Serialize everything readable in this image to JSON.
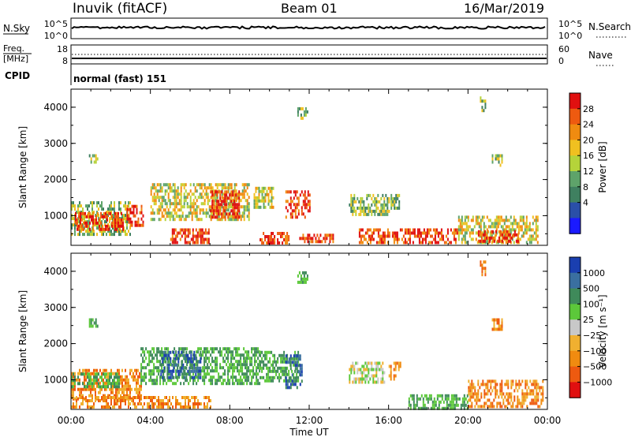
{
  "header": {
    "station": "Inuvik (fitACF)",
    "beam": "Beam 01",
    "date": "16/Mar/2019"
  },
  "top_panels": {
    "nsky": {
      "label": "N.Sky",
      "ticks_left": [
        "10^5",
        "10^0"
      ],
      "ticks_right": [
        "10^5",
        "10^0"
      ],
      "legend_label": "N.Search"
    },
    "freq": {
      "label_line1": "Freq.",
      "label_line2": "[MHz]",
      "ticks_left": [
        "18",
        "8"
      ],
      "ticks_right": [
        "60",
        "0"
      ],
      "legend_label": "Nave"
    },
    "cpid": {
      "label": "CPID",
      "value": "normal (fast) 151"
    }
  },
  "colors": {
    "power": [
      "#1a1aff",
      "#2a4fa8",
      "#3f8060",
      "#5ea36a",
      "#b5d33a",
      "#f0c020",
      "#f08b10",
      "#ee5a10",
      "#e01010"
    ],
    "velocity": [
      "#e01010",
      "#ee5a10",
      "#f08b10",
      "#f0b030",
      "#c8c8c8",
      "#5cc83a",
      "#3f8a5a",
      "#3a6fa0",
      "#1a3fb0"
    ]
  },
  "chart_data": [
    {
      "type": "heatmap",
      "title": "",
      "xlabel": "Time UT",
      "ylabel": "Slant Range [km]",
      "x_ticks": [
        "00:00",
        "04:00",
        "08:00",
        "12:00",
        "16:00",
        "20:00",
        "00:00"
      ],
      "y_ticks": [
        "1000",
        "2000",
        "3000",
        "4000"
      ],
      "xlim": [
        0,
        24
      ],
      "ylim": [
        180,
        4500
      ],
      "colorbar": {
        "label": "Power [dB]",
        "tick_labels": [
          "28",
          "24",
          "20",
          "16",
          "12",
          "8",
          "4"
        ]
      },
      "echo_regions": [
        {
          "t0": 0.0,
          "t1": 3.0,
          "r0": 480,
          "r1": 1400,
          "level": "low"
        },
        {
          "t0": 0.2,
          "t1": 2.6,
          "r0": 600,
          "r1": 1100,
          "level": "high"
        },
        {
          "t0": 2.8,
          "t1": 3.6,
          "r0": 700,
          "r1": 1300,
          "level": "high"
        },
        {
          "t0": 4.0,
          "t1": 9.0,
          "r0": 900,
          "r1": 1900,
          "level": "mid"
        },
        {
          "t0": 5.0,
          "t1": 7.0,
          "r0": 250,
          "r1": 650,
          "level": "high"
        },
        {
          "t0": 7.0,
          "t1": 8.5,
          "r0": 1000,
          "r1": 1700,
          "level": "high"
        },
        {
          "t0": 9.2,
          "t1": 10.2,
          "r0": 1200,
          "r1": 1800,
          "level": "mid"
        },
        {
          "t0": 9.5,
          "t1": 11.0,
          "r0": 250,
          "r1": 550,
          "level": "high"
        },
        {
          "t0": 10.8,
          "t1": 12.0,
          "r0": 1000,
          "r1": 1700,
          "level": "high"
        },
        {
          "t0": 11.5,
          "t1": 13.2,
          "r0": 250,
          "r1": 500,
          "level": "high"
        },
        {
          "t0": 14.0,
          "t1": 16.0,
          "r0": 1000,
          "r1": 1600,
          "level": "low"
        },
        {
          "t0": 14.5,
          "t1": 19.5,
          "r0": 250,
          "r1": 650,
          "level": "high"
        },
        {
          "t0": 19.5,
          "t1": 23.5,
          "r0": 300,
          "r1": 1000,
          "level": "mid"
        },
        {
          "t0": 20.5,
          "t1": 22.5,
          "r0": 300,
          "r1": 600,
          "level": "high"
        },
        {
          "t0": 11.4,
          "t1": 11.9,
          "r0": 3700,
          "r1": 4000,
          "level": "low"
        },
        {
          "t0": 0.9,
          "t1": 1.3,
          "r0": 2500,
          "r1": 2700,
          "level": "low"
        },
        {
          "t0": 21.2,
          "t1": 21.7,
          "r0": 2400,
          "r1": 2700,
          "level": "low"
        },
        {
          "t0": 20.6,
          "t1": 20.9,
          "r0": 3900,
          "r1": 4300,
          "level": "low"
        },
        {
          "t0": 16.1,
          "t1": 16.5,
          "r0": 1200,
          "r1": 1600,
          "level": "low"
        }
      ]
    },
    {
      "type": "heatmap",
      "title": "",
      "xlabel": "Time UT",
      "ylabel": "Slant Range [km]",
      "x_ticks": [
        "00:00",
        "04:00",
        "08:00",
        "12:00",
        "16:00",
        "20:00",
        "00:00"
      ],
      "y_ticks": [
        "1000",
        "2000",
        "3000",
        "4000"
      ],
      "xlim": [
        0,
        24
      ],
      "ylim": [
        180,
        4500
      ],
      "colorbar": {
        "label": "Velocity [m s⁻¹]",
        "tick_labels": [
          "1000",
          "500",
          "100",
          "25",
          "−25",
          "−100",
          "−500",
          "−1000"
        ]
      },
      "echo_regions": [
        {
          "t0": 0.0,
          "t1": 3.5,
          "r0": 500,
          "r1": 1300,
          "level": "neg"
        },
        {
          "t0": 0.0,
          "t1": 2.5,
          "r0": 800,
          "r1": 1200,
          "level": "pos"
        },
        {
          "t0": 3.5,
          "t1": 9.5,
          "r0": 900,
          "r1": 1900,
          "level": "pos"
        },
        {
          "t0": 4.5,
          "t1": 6.5,
          "r0": 1100,
          "r1": 1800,
          "level": "strongpos"
        },
        {
          "t0": 9.5,
          "t1": 11.5,
          "r0": 1000,
          "r1": 1800,
          "level": "pos"
        },
        {
          "t0": 10.8,
          "t1": 11.6,
          "r0": 800,
          "r1": 1700,
          "level": "strongpos"
        },
        {
          "t0": 0.0,
          "t1": 7.0,
          "r0": 220,
          "r1": 550,
          "level": "neg"
        },
        {
          "t0": 14.0,
          "t1": 15.8,
          "r0": 900,
          "r1": 1500,
          "level": "mixed"
        },
        {
          "t0": 16.0,
          "t1": 16.6,
          "r0": 1000,
          "r1": 1500,
          "level": "neg"
        },
        {
          "t0": 17.0,
          "t1": 20.0,
          "r0": 220,
          "r1": 600,
          "level": "pos"
        },
        {
          "t0": 20.0,
          "t1": 23.8,
          "r0": 300,
          "r1": 1000,
          "level": "neg"
        },
        {
          "t0": 11.4,
          "t1": 11.9,
          "r0": 3700,
          "r1": 4000,
          "level": "pos"
        },
        {
          "t0": 0.9,
          "t1": 1.3,
          "r0": 2500,
          "r1": 2700,
          "level": "pos"
        },
        {
          "t0": 21.2,
          "t1": 21.7,
          "r0": 2400,
          "r1": 2700,
          "level": "neg"
        },
        {
          "t0": 20.6,
          "t1": 20.9,
          "r0": 3900,
          "r1": 4300,
          "level": "neg"
        }
      ]
    }
  ]
}
